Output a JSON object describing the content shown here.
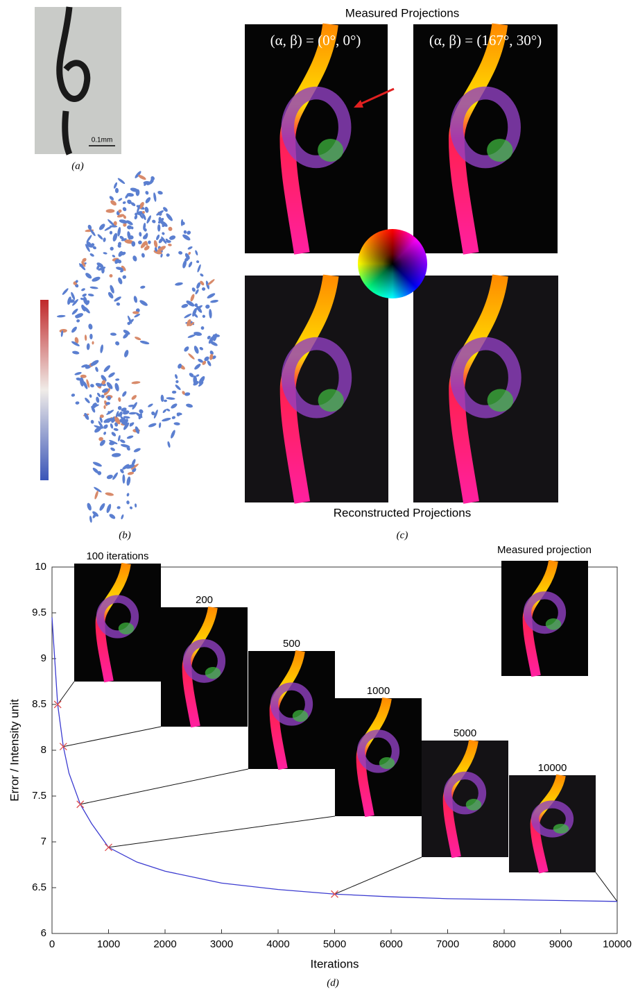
{
  "panels": {
    "a": {
      "label": "(a)",
      "scale_bar": "0.1mm"
    },
    "b": {
      "label": "(b)"
    },
    "c": {
      "label": "(c)",
      "top_title": "Measured Projections",
      "bottom_title": "Reconstructed Projections",
      "angle_left": "(α, β) = (0°, 0°)",
      "angle_right": "(α, β) = (167°, 30°)"
    }
  },
  "chart_data": {
    "type": "line",
    "label": "(d)",
    "x_label": "Iterations",
    "y_label": "Error / Intensity unit",
    "xlim": [
      0,
      10000
    ],
    "ylim": [
      6,
      10
    ],
    "xticks": [
      0,
      1000,
      2000,
      3000,
      4000,
      5000,
      6000,
      7000,
      8000,
      9000,
      10000
    ],
    "yticks": [
      6,
      6.5,
      7,
      7.5,
      8,
      8.5,
      9,
      9.5,
      10
    ],
    "x": [
      0,
      100,
      200,
      300,
      500,
      700,
      1000,
      1500,
      2000,
      3000,
      4000,
      5000,
      6000,
      7000,
      8000,
      9000,
      10000
    ],
    "series": [
      {
        "name": "Error",
        "color": "#3b3bd0",
        "values": [
          9.45,
          8.5,
          8.04,
          7.75,
          7.41,
          7.2,
          6.94,
          6.78,
          6.68,
          6.55,
          6.48,
          6.43,
          6.4,
          6.38,
          6.37,
          6.36,
          6.35
        ]
      }
    ],
    "markers": {
      "color": "#e05050",
      "x": [
        100,
        200,
        500,
        1000,
        5000
      ],
      "values": [
        8.5,
        8.04,
        7.41,
        6.94,
        6.43
      ]
    },
    "annotations": [
      {
        "label": "100 iterations",
        "x": 100,
        "y": 8.5
      },
      {
        "label": "200",
        "x": 200,
        "y": 8.04
      },
      {
        "label": "500",
        "x": 500,
        "y": 7.41
      },
      {
        "label": "1000",
        "x": 1000,
        "y": 6.94
      },
      {
        "label": "5000",
        "x": 5000,
        "y": 6.43
      },
      {
        "label": "10000",
        "x": 10000,
        "y": 6.35
      }
    ],
    "reference_label": "Measured projection"
  }
}
